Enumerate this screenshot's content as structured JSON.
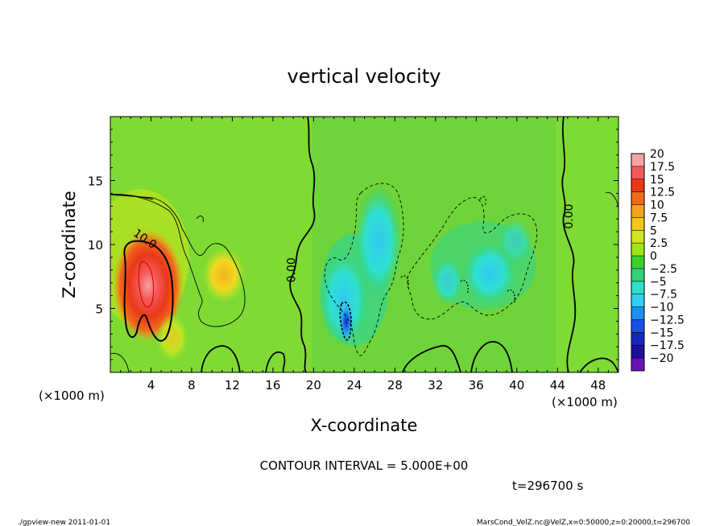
{
  "chart_data": {
    "type": "heatmap",
    "title": "vertical velocity",
    "xlabel": "X-coordinate",
    "ylabel": "Z-coordinate",
    "x_unit_label": "(×1000 m)",
    "y_unit_label": "(×1000 m)",
    "xlim": [
      0,
      50
    ],
    "ylim": [
      0,
      20
    ],
    "x_ticks": [
      "4",
      "8",
      "12",
      "16",
      "20",
      "24",
      "28",
      "32",
      "36",
      "40",
      "44",
      "48"
    ],
    "x_tick_values": [
      4,
      8,
      12,
      16,
      20,
      24,
      28,
      32,
      36,
      40,
      44,
      48
    ],
    "y_ticks": [
      "5",
      "10",
      "15"
    ],
    "y_tick_values": [
      5,
      10,
      15
    ],
    "colorbar": {
      "levels": [
        20,
        17.5,
        15,
        12.5,
        10,
        7.5,
        5,
        2.5,
        0,
        -2.5,
        -5,
        -7.5,
        -10,
        -12.5,
        -15,
        -17.5,
        -20
      ],
      "labels": [
        "20",
        "17.5",
        "15",
        "12.5",
        "10",
        "7.5",
        "5",
        "2.5",
        "0",
        "−2.5",
        "−5",
        "−7.5",
        "−10",
        "−12.5",
        "−15",
        "−17.5",
        "−20"
      ],
      "colors": [
        "#f4a3a3",
        "#f55a5a",
        "#e83818",
        "#f06a1c",
        "#f5a21c",
        "#f2c81e",
        "#d2e61c",
        "#9ee61c",
        "#3ccf2e",
        "#2ed27a",
        "#2ee0c8",
        "#32d0f0",
        "#1e90f0",
        "#1a50e6",
        "#1428c0",
        "#1e0fa0",
        "#6a14b4"
      ]
    },
    "contour_labels": [
      {
        "text": "10.0",
        "x": 3.2,
        "z": 10.2
      },
      {
        "text": "0.00",
        "x": 18.2,
        "z": 8.0
      },
      {
        "text": "0.00",
        "x": 45.5,
        "z": 12.2
      }
    ],
    "features": [
      {
        "kind": "updraft",
        "x": 3.8,
        "z": 7.5,
        "peak": 17.5
      },
      {
        "kind": "updraft",
        "x": 11.0,
        "z": 7.7,
        "peak": 7.5
      },
      {
        "kind": "downdraft",
        "x": 23.2,
        "z": 4.2,
        "peak": -12.5
      },
      {
        "kind": "downdraft",
        "x": 26.3,
        "z": 11.0,
        "peak": -7.5
      },
      {
        "kind": "downdraft",
        "x": 37.6,
        "z": 7.8,
        "peak": -7.5
      }
    ],
    "contour_interval_text": "CONTOUR INTERVAL = 5.000E+00",
    "time_text": "t=296700 s"
  },
  "footer": {
    "left": "./gpview-new  2011-01-01",
    "right": "MarsCond_VelZ.nc@VelZ,x=0:50000,z=0:20000,t=296700"
  }
}
